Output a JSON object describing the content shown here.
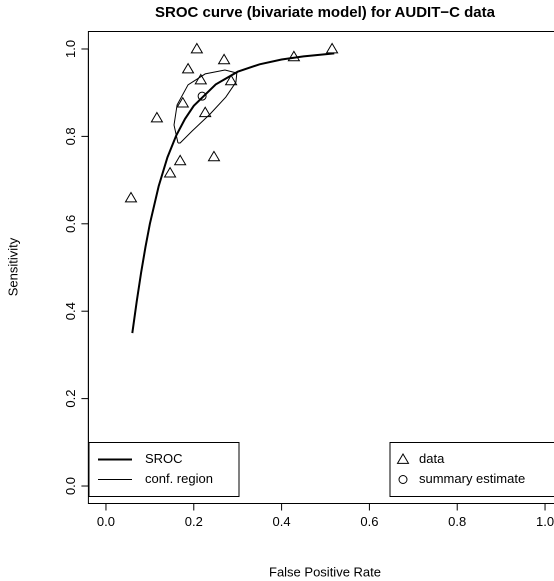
{
  "chart_data": {
    "type": "line",
    "title": "SROC curve (bivariate model) for AUDIT−C data",
    "x_label": "False Positive Rate",
    "y_label": "Sensitivity",
    "xlim": [
      -0.04,
      1.04
    ],
    "ylim": [
      -0.04,
      1.04
    ],
    "xticks": [
      {
        "value": 0,
        "label": "0.0"
      },
      0.2,
      0.4,
      0.6,
      0.8,
      {
        "value": 1,
        "label": "1.0"
      }
    ],
    "yticks": [
      {
        "value": 0,
        "label": "0.0"
      },
      0.2,
      0.4,
      0.6,
      0.8,
      {
        "value": 1,
        "label": "1.0"
      }
    ],
    "grid": false,
    "series": [
      {
        "name": "SROC",
        "color": "#000000",
        "style": "line",
        "line_width": 2,
        "legend": "bottomleft",
        "x": [
          0.06,
          0.07,
          0.08,
          0.09,
          0.1,
          0.12,
          0.14,
          0.16,
          0.18,
          0.2,
          0.25,
          0.3,
          0.35,
          0.4,
          0.45,
          0.52
        ],
        "values": [
          0.35,
          0.422,
          0.488,
          0.547,
          0.6,
          0.686,
          0.752,
          0.802,
          0.84,
          0.87,
          0.919,
          0.948,
          0.965,
          0.976,
          0.983,
          0.99
        ]
      },
      {
        "name": "conf. region",
        "color": "#000000",
        "style": "line",
        "line_width": 1,
        "legend": "bottomleft",
        "x": [
          0.164,
          0.155,
          0.162,
          0.187,
          0.226,
          0.271,
          0.298,
          0.296,
          0.273,
          0.237,
          0.196,
          0.169,
          0.164
        ],
        "values": [
          0.785,
          0.826,
          0.872,
          0.918,
          0.943,
          0.952,
          0.945,
          0.924,
          0.89,
          0.851,
          0.812,
          0.785,
          0.785
        ]
      },
      {
        "name": "data",
        "color": "#000000",
        "style": "points",
        "marker": "triangle",
        "legend": "bottomright",
        "x": [
          0.057,
          0.116,
          0.146,
          0.169,
          0.175,
          0.187,
          0.207,
          0.216,
          0.226,
          0.246,
          0.269,
          0.285,
          0.428,
          0.515
        ],
        "values": [
          0.659,
          0.842,
          0.716,
          0.744,
          0.876,
          0.954,
          1.0,
          0.929,
          0.854,
          0.753,
          0.975,
          0.927,
          0.982,
          1.0
        ]
      },
      {
        "name": "summary estimate",
        "color": "#000000",
        "style": "points",
        "marker": "circle",
        "legend": "bottomright",
        "x": [
          0.219
        ],
        "values": [
          0.892
        ]
      }
    ]
  }
}
